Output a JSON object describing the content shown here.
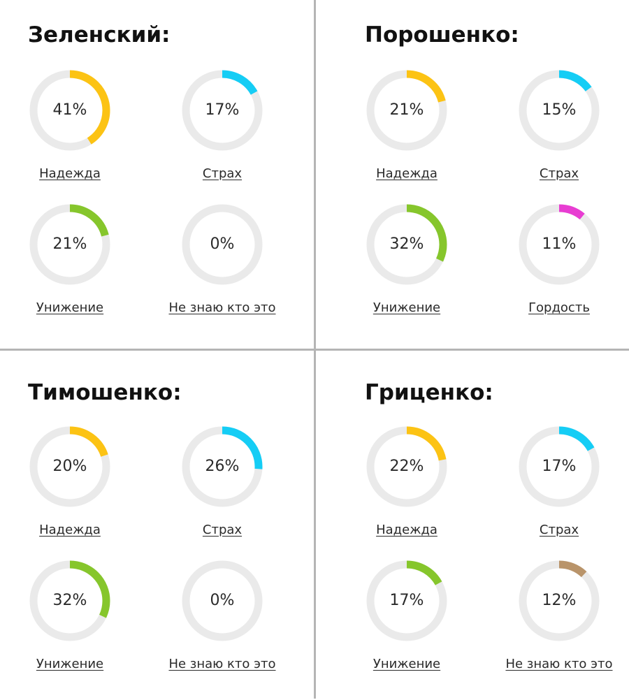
{
  "colors": {
    "track": "#eaeaea",
    "hope": "#fcc314",
    "fear": "#15cdf5",
    "humiliation": "#86c62c",
    "pride": "#e83dd2",
    "unknown": "#b9946a"
  },
  "chart_data": [
    {
      "type": "donut",
      "title": "Зеленский:",
      "items": [
        {
          "label": "Надежда",
          "value": 41,
          "display": "41%",
          "color": "#fcc314"
        },
        {
          "label": "Страх",
          "value": 17,
          "display": "17%",
          "color": "#15cdf5"
        },
        {
          "label": "Унижение",
          "value": 21,
          "display": "21%",
          "color": "#86c62c"
        },
        {
          "label": "Не знаю кто это",
          "value": 0,
          "display": "0%",
          "color": "#b9946a"
        }
      ]
    },
    {
      "type": "donut",
      "title": "Порошенко:",
      "items": [
        {
          "label": "Надежда",
          "value": 21,
          "display": "21%",
          "color": "#fcc314"
        },
        {
          "label": "Страх",
          "value": 15,
          "display": "15%",
          "color": "#15cdf5"
        },
        {
          "label": "Унижение",
          "value": 32,
          "display": "32%",
          "color": "#86c62c"
        },
        {
          "label": "Гордость",
          "value": 11,
          "display": "11%",
          "color": "#e83dd2"
        }
      ]
    },
    {
      "type": "donut",
      "title": "Тимошенко:",
      "items": [
        {
          "label": "Надежда",
          "value": 20,
          "display": "20%",
          "color": "#fcc314"
        },
        {
          "label": "Страх",
          "value": 26,
          "display": "26%",
          "color": "#15cdf5"
        },
        {
          "label": "Унижение",
          "value": 32,
          "display": "32%",
          "color": "#86c62c"
        },
        {
          "label": "Не знаю кто это",
          "value": 0,
          "display": "0%",
          "color": "#b9946a"
        }
      ]
    },
    {
      "type": "donut",
      "title": "Гриценко:",
      "items": [
        {
          "label": "Надежда",
          "value": 22,
          "display": "22%",
          "color": "#fcc314"
        },
        {
          "label": "Страх",
          "value": 17,
          "display": "17%",
          "color": "#15cdf5"
        },
        {
          "label": "Унижение",
          "value": 17,
          "display": "17%",
          "color": "#86c62c"
        },
        {
          "label": "Не знаю кто это",
          "value": 12,
          "display": "12%",
          "color": "#b9946a"
        }
      ]
    }
  ]
}
